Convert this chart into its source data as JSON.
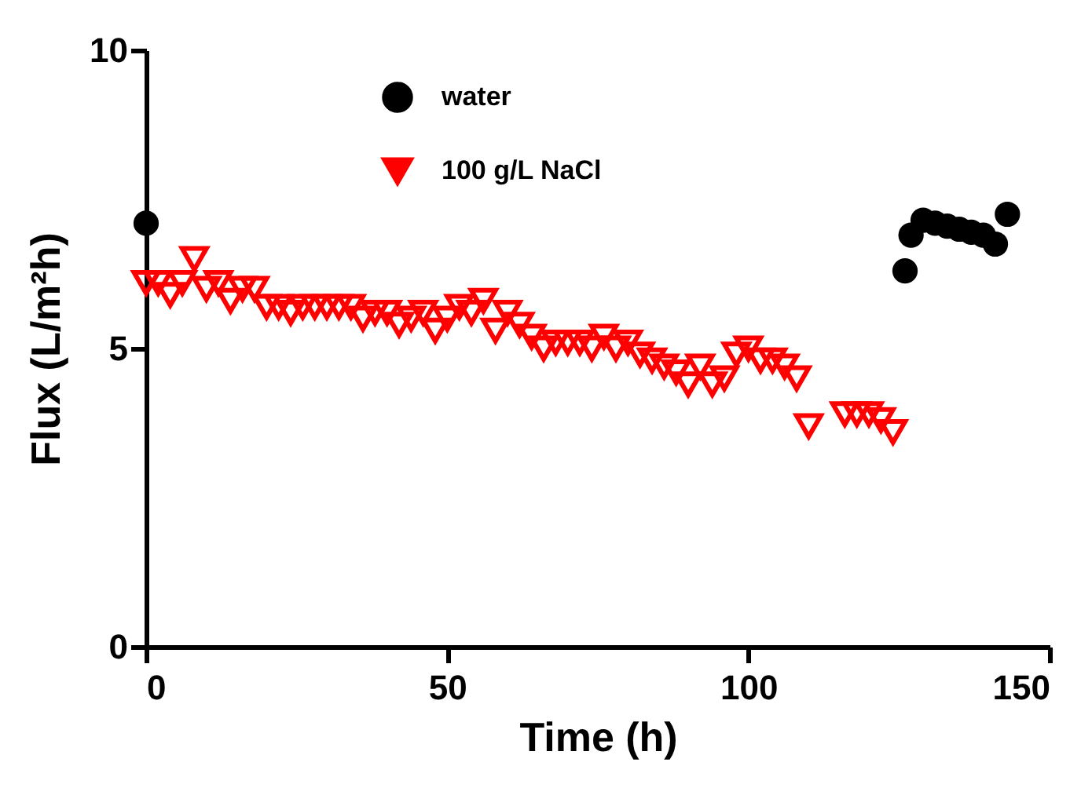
{
  "chart_data": {
    "type": "scatter",
    "xlabel": "Time (h)",
    "ylabel": "Flux (L/m²h)",
    "xlim": [
      0,
      150
    ],
    "xticks": [
      0,
      50,
      100,
      150
    ],
    "ylim": [
      0,
      10
    ],
    "yticks": [
      0,
      5,
      10
    ],
    "grid": false,
    "legend": "top",
    "series": [
      {
        "name": "water",
        "color": "#000000",
        "marker": "circle",
        "x": [
          0,
          126,
          127,
          129,
          131,
          133,
          135,
          137,
          139,
          141,
          143
        ],
        "values": [
          7.1,
          6.3,
          6.9,
          7.15,
          7.1,
          7.05,
          7.0,
          6.95,
          6.9,
          6.75,
          7.25
        ]
      },
      {
        "name": "100 g/L NaCl",
        "color": "#ff0000",
        "marker": "triangle",
        "x": [
          0,
          2,
          4,
          6,
          8,
          10,
          12,
          14,
          16,
          18,
          20,
          22,
          24,
          26,
          28,
          30,
          32,
          34,
          36,
          38,
          40,
          42,
          44,
          46,
          48,
          50,
          52,
          54,
          56,
          58,
          60,
          62,
          64,
          66,
          68,
          70,
          72,
          74,
          76,
          78,
          80,
          82,
          84,
          86,
          88,
          90,
          92,
          94,
          96,
          98,
          100,
          102,
          104,
          106,
          108,
          110,
          116,
          118,
          120,
          122,
          124
        ],
        "values": [
          6.1,
          6.1,
          5.9,
          6.1,
          6.5,
          6.0,
          6.1,
          5.8,
          6.0,
          6.0,
          5.7,
          5.7,
          5.6,
          5.7,
          5.7,
          5.7,
          5.7,
          5.7,
          5.5,
          5.6,
          5.6,
          5.4,
          5.5,
          5.6,
          5.3,
          5.5,
          5.7,
          5.6,
          5.8,
          5.3,
          5.6,
          5.4,
          5.2,
          5.0,
          5.1,
          5.1,
          5.1,
          5.0,
          5.2,
          5.0,
          5.1,
          4.9,
          4.8,
          4.7,
          4.6,
          4.4,
          4.7,
          4.4,
          4.5,
          4.9,
          5.0,
          4.8,
          4.8,
          4.7,
          4.5,
          3.7,
          3.9,
          3.9,
          3.9,
          3.8,
          3.6
        ]
      }
    ]
  }
}
